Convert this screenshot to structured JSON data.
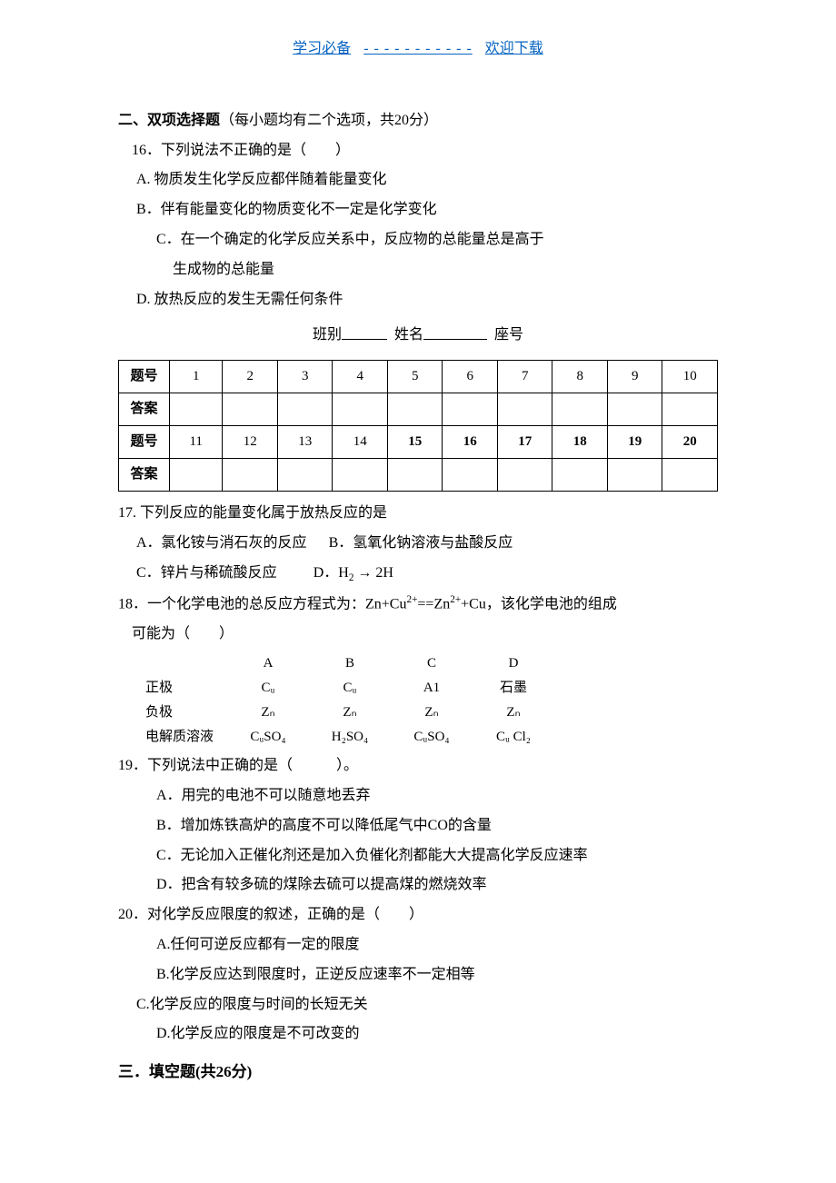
{
  "header": {
    "left_link": "学习必备",
    "dots": "- - - - - - - - - - -",
    "right_link": "欢迎下载"
  },
  "section2": {
    "title": "二、双项选择题",
    "subtitle": "（每小题均有二个选项，共20分）"
  },
  "q16": {
    "stem": "16．下列说法不正确的是（　　）",
    "a": "A. 物质发生化学反应都伴随着能量变化",
    "b": "B．伴有能量变化的物质变化不一定是化学变化",
    "c1": "C．在一个确定的化学反应关系中，反应物的总能量总是高于",
    "c2": "生成物的总能量",
    "d": "D. 放热反应的发生无需任何条件"
  },
  "name_row": {
    "class_label": "班别",
    "name_label": "姓名",
    "seat_label": "座号"
  },
  "grid": {
    "row1_label": "题号",
    "row2_label": "答案",
    "row3_label": "题号",
    "row4_label": "答案",
    "nums1": [
      "1",
      "2",
      "3",
      "4",
      "5",
      "6",
      "7",
      "8",
      "9",
      "10"
    ],
    "nums2": [
      "11",
      "12",
      "13",
      "14",
      "15",
      "16",
      "17",
      "18",
      "19",
      "20"
    ]
  },
  "q17": {
    "stem": "17. 下列反应的能量变化属于放热反应的是",
    "a": "A．氯化铵与消石灰的反应",
    "b": "B．氢氧化钠溶液与盐酸反应",
    "c": "C．锌片与稀硫酸反应",
    "d_prefix": "D．H",
    "d_arrow": " → 2H"
  },
  "q18": {
    "stem_prefix": "18．一个化学电池的总反应方程式为：Zn+Cu",
    "stem_mid": "==Zn",
    "stem_suffix": "+Cu，该化学电池的组成",
    "stem_line2": "可能为（　　）",
    "headers": [
      "",
      "A",
      "B",
      "C",
      "D"
    ],
    "positive_label": "正极",
    "negative_label": "负极",
    "electrolyte_label": "电解质溶液",
    "positive": [
      "Cᵤ",
      "Cᵤ",
      "A1",
      "石墨"
    ],
    "negative": [
      "Zₙ",
      "Zₙ",
      "Zₙ",
      "Zₙ"
    ],
    "electrolyte": [
      "CᵤSO₄",
      "H₂SO₄",
      "CᵤSO₄",
      "Cᵤ Cl₂"
    ]
  },
  "q19": {
    "stem": "19．下列说法中正确的是（　　　）。",
    "a": "A．用完的电池不可以随意地丢弃",
    "b": "B．增加炼铁高炉的高度不可以降低尾气中CO的含量",
    "c": "C．无论加入正催化剂还是加入负催化剂都能大大提高化学反应速率",
    "d": "D．把含有较多硫的煤除去硫可以提高煤的燃烧效率"
  },
  "q20": {
    "stem": "20．对化学反应限度的叙述，正确的是（　　）",
    "a": "A.任何可逆反应都有一定的限度",
    "b": "B.化学反应达到限度时，正逆反应速率不一定相等",
    "c": "C.化学反应的限度与时间的长短无关",
    "d": "D.化学反应的限度是不可改变的"
  },
  "section3": {
    "title": "三．填空题(共26分)"
  }
}
